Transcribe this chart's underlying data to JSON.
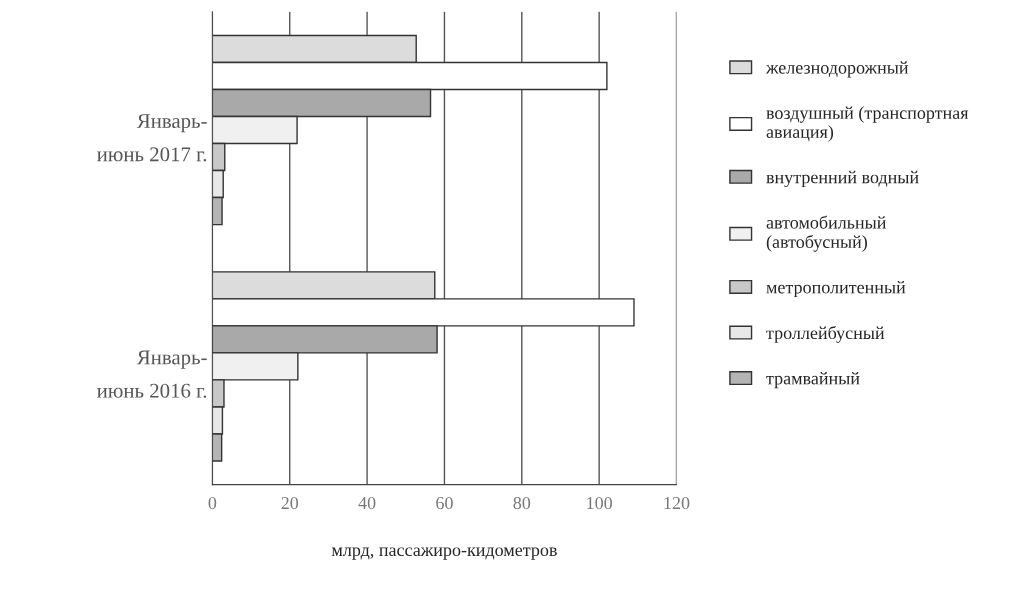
{
  "chart_data": {
    "type": "bar",
    "orientation": "horizontal",
    "xlabel": "млрд, пассажиро-кидометров",
    "categories": [
      "Январь-\nиюнь 2017 г.",
      "Январь-\nиюнь 2016 г."
    ],
    "series": [
      {
        "name": "железнодорожный",
        "color": "#dcdcdc",
        "values": [
          52.7,
          57.5
        ]
      },
      {
        "name": "воздушный (транспортная\nавиация)",
        "color": "#ffffff",
        "values": [
          102,
          109
        ]
      },
      {
        "name": "внутренний водный",
        "color": "#a9a9a9",
        "values": [
          56.4,
          58.1
        ]
      },
      {
        "name": "автомобильный\n(автобусный)",
        "color": "#f0f0f0",
        "values": [
          21.9,
          22.1
        ]
      },
      {
        "name": "метрополитенный",
        "color": "#c8c8c8",
        "values": [
          3.2,
          3.0
        ]
      },
      {
        "name": "троллейбусный",
        "color": "#e8e8e8",
        "values": [
          2.8,
          2.6
        ]
      },
      {
        "name": "трамвайный",
        "color": "#b4b4b4",
        "values": [
          2.5,
          2.4
        ]
      }
    ],
    "xlim": [
      0,
      120
    ],
    "xticks": [
      0,
      20,
      40,
      60,
      80,
      100,
      120
    ],
    "grid": "x",
    "legend": "right"
  }
}
